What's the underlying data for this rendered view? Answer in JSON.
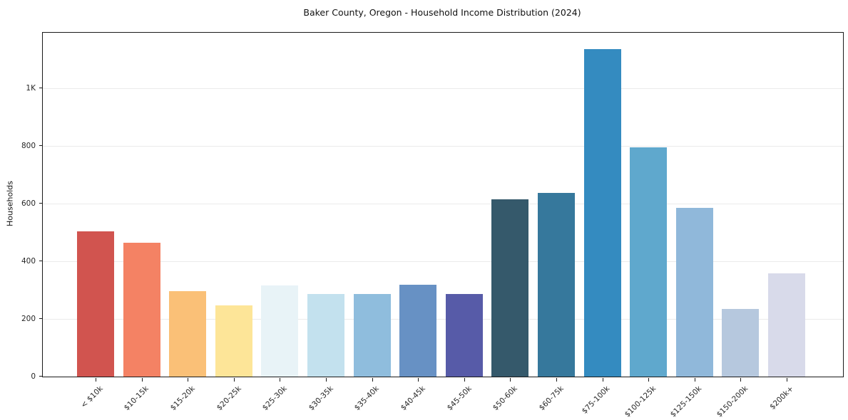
{
  "chart_data": {
    "type": "bar",
    "title": "Baker County, Oregon - Household Income Distribution (2024)",
    "xlabel": "",
    "ylabel": "Households",
    "categories": [
      "< $10k",
      "$10-15k",
      "$15-20k",
      "$20-25k",
      "$25-30k",
      "$30-35k",
      "$35-40k",
      "$40-45k",
      "$45-50k",
      "$50-60k",
      "$60-75k",
      "$75-100k",
      "$100-125k",
      "$125-150k",
      "$150-200k",
      "$200k+"
    ],
    "values": [
      503,
      464,
      296,
      248,
      316,
      287,
      286,
      318,
      286,
      616,
      638,
      1136,
      796,
      585,
      234,
      358
    ],
    "bar_colors": [
      "#d1544f",
      "#f48264",
      "#fac077",
      "#fde598",
      "#e8f3f7",
      "#c3e1ee",
      "#8fbddd",
      "#6791c4",
      "#575ba8",
      "#35596b",
      "#36789c",
      "#348bc0",
      "#5fa8cd",
      "#90b8da",
      "#b6c8de",
      "#d8daea"
    ],
    "ylim": [
      0,
      1193
    ],
    "yticks": [
      {
        "value": 0,
        "label": "0"
      },
      {
        "value": 200,
        "label": "200"
      },
      {
        "value": 400,
        "label": "400"
      },
      {
        "value": 600,
        "label": "600"
      },
      {
        "value": 800,
        "label": "800"
      },
      {
        "value": 1000,
        "label": "1K"
      }
    ],
    "grid": "horizontal",
    "gridline_color": "#ebebeb",
    "spine_color": "#1a1a1a",
    "background_color": "#ffffff",
    "xtick_rotation_deg": 45,
    "legend": "none"
  }
}
